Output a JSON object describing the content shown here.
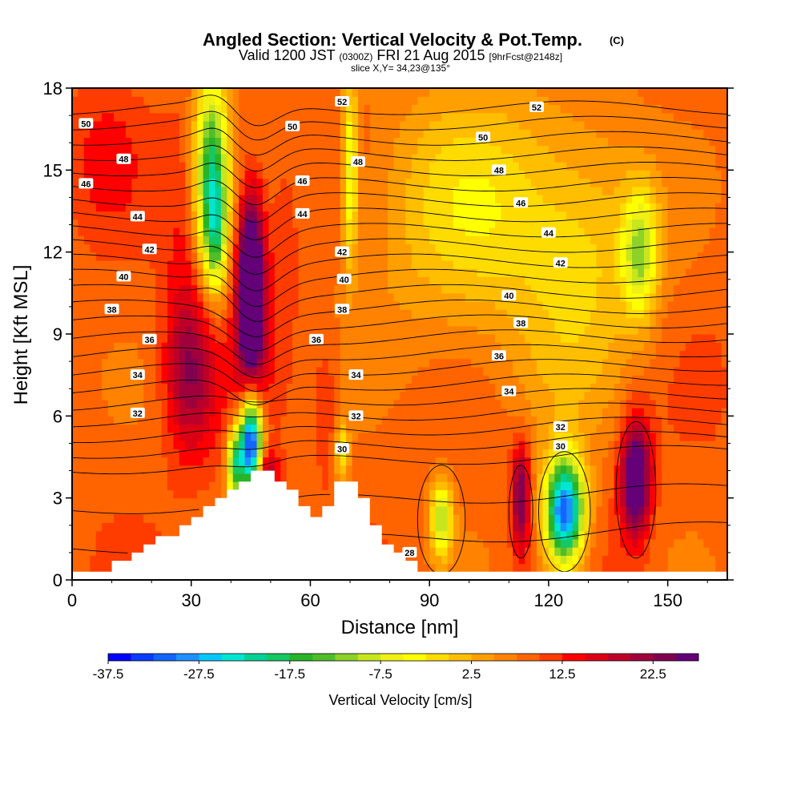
{
  "chart_data": {
    "type": "heatmap",
    "title": "Angled Section: Vertical Velocity & Pot.Temp.",
    "title_suffix": "(C)",
    "subtitle_main": "Valid 1200 JST",
    "subtitle_utc": "(0300Z)",
    "subtitle_date": "FRI 21 Aug 2015",
    "subtitle_fcst": "[9hrFcst@2148z]",
    "slice_label": "slice X,Y= 34,23@135°",
    "xlabel": "Distance [nm]",
    "ylabel": "Height [Kft MSL]",
    "xlim": [
      0,
      165
    ],
    "ylim": [
      0,
      18
    ],
    "x_ticks": [
      0,
      30,
      60,
      90,
      120,
      150
    ],
    "y_ticks": [
      0,
      3,
      6,
      9,
      12,
      15,
      18
    ],
    "colorbar": {
      "label": "Vertical Velocity [cm/s]",
      "min": -37.5,
      "max": 27.5,
      "step": 2.5,
      "tick_values": [
        -37.5,
        -27.5,
        -17.5,
        -7.5,
        2.5,
        12.5,
        22.5
      ],
      "colors": [
        "#0000ff",
        "#0a3cff",
        "#1464ff",
        "#1e90ff",
        "#00c8ff",
        "#00e6d2",
        "#00d296",
        "#14c864",
        "#28b428",
        "#50be28",
        "#8cd228",
        "#c8e61e",
        "#f0f014",
        "#ffff00",
        "#ffdc00",
        "#ffbe00",
        "#ffa000",
        "#ff8200",
        "#ff6400",
        "#ff3c00",
        "#ff0000",
        "#dc0014",
        "#be0028",
        "#a0003c",
        "#820050",
        "#640078"
      ]
    },
    "velocity_field": {
      "background": 9,
      "features": [
        {
          "x": 45,
          "y": 11.5,
          "sx": 2.2,
          "sy": 2.0,
          "amp": 26
        },
        {
          "x": 45,
          "y": 9.0,
          "sx": 2.8,
          "sy": 2.0,
          "amp": 14
        },
        {
          "x": 30,
          "y": 7.5,
          "sx": 4.5,
          "sy": 2.0,
          "amp": 12
        },
        {
          "x": 28,
          "y": 11.5,
          "sx": 3.5,
          "sy": 3.5,
          "amp": 4
        },
        {
          "x": 35,
          "y": 15.0,
          "sx": 3.0,
          "sy": 2.5,
          "amp": -26
        },
        {
          "x": 36,
          "y": 12.5,
          "sx": 2.0,
          "sy": 1.5,
          "amp": -14
        },
        {
          "x": 45,
          "y": 5.0,
          "sx": 2.0,
          "sy": 1.2,
          "amp": -46
        },
        {
          "x": 41,
          "y": 4.2,
          "sx": 1.5,
          "sy": 0.9,
          "amp": -24
        },
        {
          "x": 49,
          "y": 3.8,
          "sx": 2.0,
          "sy": 0.7,
          "amp": 14
        },
        {
          "x": 53,
          "y": 12.0,
          "sx": 3.0,
          "sy": 3.0,
          "amp": 3
        },
        {
          "x": 64,
          "y": 6.5,
          "sx": 2.5,
          "sy": 1.8,
          "amp": 4
        },
        {
          "x": 68,
          "y": 4.7,
          "sx": 1.2,
          "sy": 0.8,
          "amp": -12
        },
        {
          "x": 70,
          "y": 15.0,
          "sx": 1.4,
          "sy": 2.5,
          "amp": -14
        },
        {
          "x": 93,
          "y": 2.3,
          "sx": 2.0,
          "sy": 1.0,
          "amp": -18
        },
        {
          "x": 113,
          "y": 3.0,
          "sx": 1.6,
          "sy": 1.4,
          "amp": 17
        },
        {
          "x": 124,
          "y": 2.5,
          "sx": 3.5,
          "sy": 1.4,
          "amp": -42
        },
        {
          "x": 142,
          "y": 3.7,
          "sx": 2.6,
          "sy": 1.5,
          "amp": 24
        },
        {
          "x": 143,
          "y": 12.0,
          "sx": 3.0,
          "sy": 1.6,
          "amp": -16
        },
        {
          "x": 100,
          "y": 13.5,
          "sx": 18.0,
          "sy": 3.5,
          "amp": -10
        },
        {
          "x": 130,
          "y": 12.0,
          "sx": 12.0,
          "sy": 3.5,
          "amp": -8
        },
        {
          "x": 8,
          "y": 15.5,
          "sx": 6.0,
          "sy": 1.8,
          "amp": 4
        },
        {
          "x": 120,
          "y": 7.0,
          "sx": 10.0,
          "sy": 2.0,
          "amp": -2
        }
      ]
    },
    "terrain": [
      {
        "x": 0,
        "h": 0.3
      },
      {
        "x": 10,
        "h": 0.3
      },
      {
        "x": 10,
        "h": 0.7
      },
      {
        "x": 15,
        "h": 0.7
      },
      {
        "x": 15,
        "h": 1.0
      },
      {
        "x": 18,
        "h": 1.0
      },
      {
        "x": 18,
        "h": 1.3
      },
      {
        "x": 21,
        "h": 1.3
      },
      {
        "x": 21,
        "h": 1.6
      },
      {
        "x": 27,
        "h": 1.6
      },
      {
        "x": 27,
        "h": 2.0
      },
      {
        "x": 30,
        "h": 2.0
      },
      {
        "x": 30,
        "h": 2.3
      },
      {
        "x": 33,
        "h": 2.3
      },
      {
        "x": 33,
        "h": 2.7
      },
      {
        "x": 36,
        "h": 2.7
      },
      {
        "x": 36,
        "h": 3.0
      },
      {
        "x": 39,
        "h": 3.0
      },
      {
        "x": 39,
        "h": 3.3
      },
      {
        "x": 42,
        "h": 3.3
      },
      {
        "x": 42,
        "h": 3.6
      },
      {
        "x": 45,
        "h": 3.6
      },
      {
        "x": 45,
        "h": 4.0
      },
      {
        "x": 51,
        "h": 4.0
      },
      {
        "x": 51,
        "h": 3.6
      },
      {
        "x": 54,
        "h": 3.6
      },
      {
        "x": 54,
        "h": 3.3
      },
      {
        "x": 57,
        "h": 3.3
      },
      {
        "x": 57,
        "h": 2.7
      },
      {
        "x": 60,
        "h": 2.7
      },
      {
        "x": 60,
        "h": 2.3
      },
      {
        "x": 63,
        "h": 2.3
      },
      {
        "x": 63,
        "h": 2.7
      },
      {
        "x": 66,
        "h": 2.7
      },
      {
        "x": 66,
        "h": 3.6
      },
      {
        "x": 72,
        "h": 3.6
      },
      {
        "x": 72,
        "h": 3.0
      },
      {
        "x": 75,
        "h": 3.0
      },
      {
        "x": 75,
        "h": 2.0
      },
      {
        "x": 78,
        "h": 2.0
      },
      {
        "x": 78,
        "h": 1.3
      },
      {
        "x": 81,
        "h": 1.3
      },
      {
        "x": 81,
        "h": 1.0
      },
      {
        "x": 84,
        "h": 1.0
      },
      {
        "x": 84,
        "h": 0.7
      },
      {
        "x": 87,
        "h": 0.7
      },
      {
        "x": 87,
        "h": 0.3
      },
      {
        "x": 165,
        "h": 0.3
      }
    ],
    "theta_contours": {
      "levels": [
        28,
        29,
        30,
        31,
        32,
        33,
        34,
        35,
        36,
        37,
        38,
        39,
        40,
        41,
        42,
        43,
        44,
        45,
        46,
        47,
        48,
        49,
        50,
        51,
        52,
        53
      ],
      "labels": [
        {
          "text": "50",
          "x": 3.5,
          "y": 16.7
        },
        {
          "text": "48",
          "x": 13.0,
          "y": 15.4
        },
        {
          "text": "46",
          "x": 3.5,
          "y": 14.5
        },
        {
          "text": "44",
          "x": 16.5,
          "y": 13.3
        },
        {
          "text": "42",
          "x": 19.5,
          "y": 12.1
        },
        {
          "text": "40",
          "x": 13.0,
          "y": 11.1
        },
        {
          "text": "38",
          "x": 10.0,
          "y": 9.9
        },
        {
          "text": "36",
          "x": 19.5,
          "y": 8.8
        },
        {
          "text": "34",
          "x": 16.5,
          "y": 7.5
        },
        {
          "text": "32",
          "x": 16.5,
          "y": 6.1
        },
        {
          "text": "52",
          "x": 68.0,
          "y": 17.5
        },
        {
          "text": "50",
          "x": 55.5,
          "y": 16.6
        },
        {
          "text": "48",
          "x": 72.0,
          "y": 15.3
        },
        {
          "text": "46",
          "x": 58.0,
          "y": 14.6
        },
        {
          "text": "44",
          "x": 58.0,
          "y": 13.4
        },
        {
          "text": "42",
          "x": 68.0,
          "y": 12.0
        },
        {
          "text": "40",
          "x": 68.5,
          "y": 11.0
        },
        {
          "text": "38",
          "x": 68.0,
          "y": 9.9
        },
        {
          "text": "36",
          "x": 61.5,
          "y": 8.8
        },
        {
          "text": "34",
          "x": 71.5,
          "y": 7.5
        },
        {
          "text": "32",
          "x": 71.5,
          "y": 6.0
        },
        {
          "text": "30",
          "x": 68.0,
          "y": 4.8
        },
        {
          "text": "52",
          "x": 117.0,
          "y": 17.3
        },
        {
          "text": "50",
          "x": 103.5,
          "y": 16.2
        },
        {
          "text": "48",
          "x": 107.5,
          "y": 15.0
        },
        {
          "text": "46",
          "x": 113.0,
          "y": 13.8
        },
        {
          "text": "44",
          "x": 120.0,
          "y": 12.7
        },
        {
          "text": "42",
          "x": 123.0,
          "y": 11.6
        },
        {
          "text": "40",
          "x": 110.0,
          "y": 10.4
        },
        {
          "text": "38",
          "x": 113.0,
          "y": 9.4
        },
        {
          "text": "36",
          "x": 107.5,
          "y": 8.2
        },
        {
          "text": "34",
          "x": 110.0,
          "y": 6.9
        },
        {
          "text": "32",
          "x": 123.0,
          "y": 5.6
        },
        {
          "text": "30",
          "x": 123.0,
          "y": 4.9
        },
        {
          "text": "28",
          "x": 85.0,
          "y": 1.0
        }
      ]
    }
  }
}
